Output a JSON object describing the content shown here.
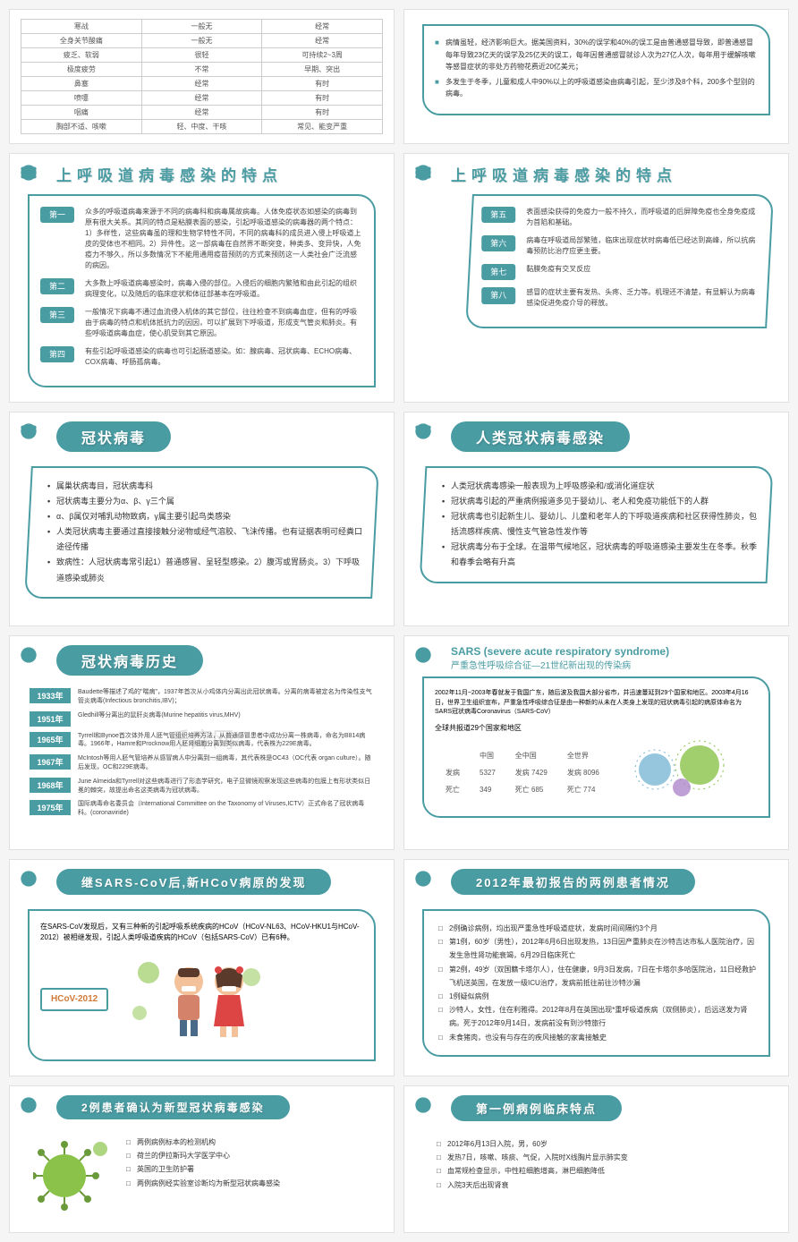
{
  "colors": {
    "primary": "#4a9ca3",
    "text": "#333333",
    "border": "#e0e0e0",
    "background": "#ffffff",
    "page_bg": "#f5f5f5"
  },
  "watermark": {
    "main": "千库网",
    "sub": "588ku.com"
  },
  "slide1": {
    "rows": [
      [
        "寒战",
        "一般无",
        "经常"
      ],
      [
        "全身关节酸痛",
        "一般无",
        "经常"
      ],
      [
        "疲乏、软弱",
        "很轻",
        "可持续2~3周"
      ],
      [
        "极度疲劳",
        "不常",
        "早期、突出"
      ],
      [
        "鼻塞",
        "经常",
        "有时"
      ],
      [
        "喷嚏",
        "经常",
        "有时"
      ],
      [
        "咽痛",
        "经常",
        "有时"
      ],
      [
        "胸部不适、咳嗽",
        "轻、中度、干咳",
        "常见、能变严重"
      ]
    ]
  },
  "slide2": {
    "items": [
      "病情虽轻，经济影响巨大。据美国资料，30%的误学和40%的误工是由普通感冒导致，即普通感冒每年导致23亿天的误学及25亿天的误工，每年因普通感冒就诊人次为27亿人次，每年用于缓解咳嗽等感冒症状的非处方药物花费近20亿美元；",
      "多发生于冬季，儿童和成人中90%以上的呼吸道感染由病毒引起，至少涉及8个科，200多个型别的病毒。"
    ]
  },
  "slide3": {
    "title": "上呼吸道病毒感染的特点",
    "items": [
      {
        "tag": "第一",
        "text": "众多的呼吸道病毒来源于不同的病毒科和病毒属故病毒。人体免疫状态如感染的病毒到原有很大关系。其同的特点是粘膜表面的感染，引起呼吸道感染的病毒器的两个特点：1）多样性，这些病毒虽的理和生物学特性不同，不同的病毒科的成员进入侵上呼吸道上皮的受体也不相同。2）异件性。这一部病毒在自然界不断突变，种类多、变异快，人免疫力不够久，所以多数情况下不能用通用疫苗预防的方式来预防这一人类社会广泛流感的病因。"
      },
      {
        "tag": "第二",
        "text": "大多数上呼吸道病毒感染时，病毒入侵的部位。入侵后的细胞内繁殖和由此引起的组织病理变化，以及随后的临床症状和体征部基本在呼吸道。"
      },
      {
        "tag": "第三",
        "text": "一般情况下病毒不通过血流侵入机体的其它部位，往往检查不到病毒血症，但有的呼吸由于病毒的特点和机体抵抗力的因因，可以扩展到下呼吸道，形成支气管炎和肺炎。有些呼吸道病毒血症，使心肌受到其它原因。"
      },
      {
        "tag": "第四",
        "text": "有些引起呼吸道感染的病毒也可引起肠道感染。如：腺病毒、冠状病毒、ECHO病毒、COX病毒、呼肠孤病毒。"
      }
    ]
  },
  "slide4": {
    "title": "上呼吸道病毒感染的特点",
    "items": [
      {
        "tag": "第五",
        "text": "表面感染获得的免疫力一般不持久，而呼吸道的后屏障免疫也全身免疫成为首陷和基础。"
      },
      {
        "tag": "第六",
        "text": "病毒在呼吸道局部繁殖，临床出现症状时病毒低已经达到高峰，所以抗病毒预防比治疗应更主要。"
      },
      {
        "tag": "第七",
        "text": "黏膜免疫有交叉反应"
      },
      {
        "tag": "第八",
        "text": "感冒的症状主要有发热、头疼、乏力等。机理还不清楚，有显解认为病毒感染促进免疫介导的释放。"
      }
    ]
  },
  "slide5": {
    "title": "冠状病毒",
    "items": [
      "属巢状病毒目，冠状病毒科",
      "冠状病毒主要分为α、β、γ三个属",
      "α、β属仅对哺乳动物致病，γ属主要引起鸟类感染",
      "人类冠状病毒主要通过直接接触分泌物或经气溶胶、飞沫传播。也有证据表明可经粪口途径传播",
      "致病性：人冠状病毒常引起1）普通感冒、呈轻型感染。2）腹泻或胃肠炎。3）下呼吸道感染或肺炎"
    ]
  },
  "slide6": {
    "title": "人类冠状病毒感染",
    "items": [
      "人类冠状病毒感染一般表现为上呼吸感染和/或消化道症状",
      "冠状病毒引起的严重病例报道多见于婴幼儿、老人和免疫功能低下的人群",
      "冠状病毒也引起新生儿、婴幼儿、儿童和老年人的下呼吸道疾病和社区获得性肺炎，包括流感样疾病、慢性支气管急性发作等",
      "冠状病毒分布于全球。在温带气候地区，冠状病毒的呼吸道感染主要发生在冬季。秋季和春季会略有升高"
    ]
  },
  "slide7": {
    "title": "冠状病毒历史",
    "rows": [
      {
        "year": "1933年",
        "text": "Baudette等描述了鸡的\"喘病\"，1937年首次从小鸡体内分离出此冠状病毒。分离的病毒被定名为传染性支气管炎病毒(Infectious bronchitis,IBV)；"
      },
      {
        "year": "1951年",
        "text": "Gledhill等分离出的鼠肝炎病毒(Murine hepatitis virus,MHV)"
      },
      {
        "year": "1965年",
        "text": "Tyrrell和Bynoe首次体外用人胚气管组织培养方法，从普通感冒患者中成功分离一株病毒，命名为B814病毒。1966年，Hamre和Procknow用人胚肾细胞分离到类似病毒，代表株为229E病毒。"
      },
      {
        "year": "1967年",
        "text": "McIntosh等用人胚气管培养从感冒病人中分离到一组病毒，其代表株是OC43（OC代表 organ culture）。随后发现，OC和229E病毒。"
      },
      {
        "year": "1968年",
        "text": "June Almeida和Tyrrell对这些病毒进行了形态学研究，电子显微镜观察发现这些病毒的包膜上有形状类似日冕的棘突，故提出命名这类病毒为冠状病毒。"
      },
      {
        "year": "1975年",
        "text": "国际病毒命名委员会（International Committee on the Taxonomy of Viruses,ICTV）正式命名了冠状病毒科。(coronaviride)"
      }
    ]
  },
  "slide8": {
    "title": "SARS (severe acute respiratory syndrome)",
    "subtitle": "严重急性呼吸综合征—21世纪新出现的传染病",
    "text": "2002年11月~2003年春就发于我国广东，随后波及我国大部分省市，并迅速蔓延到29个国家和地区。2003年4月16日，世界卫生组织宣布，严重急性呼吸综合征是由一种新的从未在人类身上发现的冠状病毒引起的病原体命名为SARS冠状病毒Coronavirus（SARS-CoV）",
    "summary": "全球共报道29个国家和地区",
    "stats": {
      "headers": [
        "",
        "中国",
        "全中国",
        "全世界"
      ],
      "rows": [
        [
          "发病",
          "5327",
          "发病 7429",
          "发病 8096"
        ],
        [
          "死亡",
          "349",
          "死亡 685",
          "死亡 774"
        ]
      ]
    }
  },
  "slide9": {
    "title": "继SARS-CoV后,新HCoV病原的发现",
    "text": "在SARS-CoV发现后，又有三种新的引起呼吸系统疾病的HCoV（HCoV-NL63、HCoV-HKU1与HCoV-2012）被相继发现，引起人类呼吸道疾病的HCoV（包括SARS-CoV）已有6种。",
    "badge": "HCoV-2012"
  },
  "slide10": {
    "title": "2012年最初报告的两例患者情况",
    "items": [
      "2例确诊病例，均出现严重急性呼吸道症状，发病时间间隔约3个月",
      "第1例，60岁（男性），2012年6月6日出现发热，13日因产重肺炎在沙特吉达市私人医院治疗，因发生急性肾功能衰竭，6月29日临床死亡",
      "第2例，49岁（双国籍卡塔尔人），住在健康，9月3日发病，7日在卡塔尔多哈医院治，11日经救护飞机送英国，在发放一级ICU治疗，发病前抵往前往沙特沙漏",
      "1例疑似病例",
      "沙特人，女性，住在利雅得。2012年8月在英国出现*重呼吸道疾病（双侧肺炎），后远送发为肾病。死于2012年9月14日，发病前没有到沙特旅行",
      "未食猪肉，也没有与存在的疾风接触的家禽接触史"
    ]
  },
  "slide11": {
    "title": "2例患者确认为新型冠状病毒感染",
    "items": [
      "两例病例标本的检测机构",
      "荷兰的伊拉斯玛大学医学中心",
      "英国的卫生防护署",
      "两例病例经实验室诊断均为新型冠状病毒感染"
    ]
  },
  "slide12": {
    "title": "第一例病例临床特点",
    "items": [
      "2012年6月13日入院，男，60岁",
      "发热7日，咳嗽、咳痰、气促，入院时X线胸片显示肺实变",
      "血常规检查显示，中性粒细胞增高，淋巴细胞降低",
      "入院3天后出现肾衰"
    ]
  }
}
